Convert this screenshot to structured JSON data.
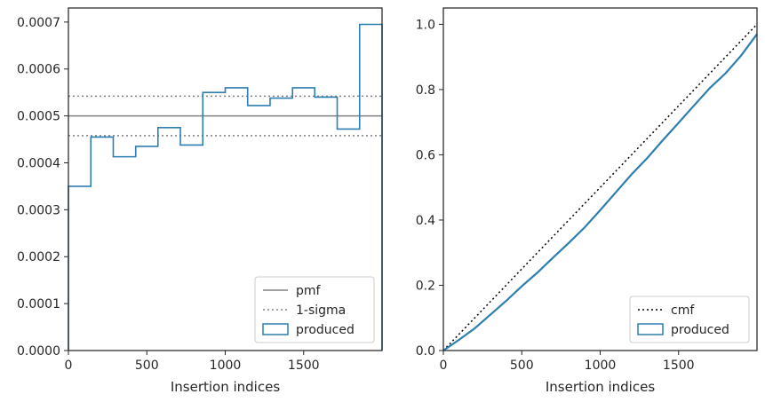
{
  "chart_data": [
    {
      "type": "line",
      "subtype": "step-histogram",
      "xlabel": "Insertion indices",
      "ylabel": "",
      "xlim": [
        0,
        2000
      ],
      "ylim": [
        0,
        0.00073
      ],
      "xticks": [
        0,
        500,
        1000,
        1500
      ],
      "xtick_labels": [
        "0",
        "500",
        "1000",
        "1500"
      ],
      "yticks": [
        0,
        0.0001,
        0.0002,
        0.0003,
        0.0004,
        0.0005,
        0.0006,
        0.0007
      ],
      "ytick_labels": [
        "0.0000",
        "0.0001",
        "0.0002",
        "0.0003",
        "0.0004",
        "0.0005",
        "0.0006",
        "0.0007"
      ],
      "bin_edges": [
        0,
        143,
        286,
        429,
        571,
        714,
        857,
        1000,
        1143,
        1286,
        1429,
        1571,
        1714,
        1857,
        2000
      ],
      "series": [
        {
          "name": "produced",
          "values": [
            0.00035,
            0.000455,
            0.000413,
            0.000435,
            0.000475,
            0.000438,
            0.00055,
            0.00056,
            0.000522,
            0.000538,
            0.00056,
            0.00054,
            0.000472,
            0.000695
          ],
          "color": "#2e7eb0"
        }
      ],
      "hlines": [
        {
          "name": "pmf",
          "y": 0.0005,
          "style": "solid",
          "color": "#808080"
        },
        {
          "name": "1-sigma",
          "y": 0.000542,
          "style": "dotted",
          "color": "#808080"
        },
        {
          "name": "1-sigma",
          "y": 0.000458,
          "style": "dotted",
          "color": "#808080"
        }
      ],
      "legend": {
        "position": "lower right",
        "entries": [
          "pmf",
          "1-sigma",
          "produced"
        ]
      },
      "grid": false
    },
    {
      "type": "line",
      "xlabel": "Insertion indices",
      "ylabel": "",
      "xlim": [
        0,
        2000
      ],
      "ylim": [
        0,
        1.05
      ],
      "xticks": [
        0,
        500,
        1000,
        1500
      ],
      "xtick_labels": [
        "0",
        "500",
        "1000",
        "1500"
      ],
      "yticks": [
        0,
        0.2,
        0.4,
        0.6,
        0.8,
        1.0
      ],
      "ytick_labels": [
        "0.0",
        "0.2",
        "0.4",
        "0.6",
        "0.8",
        "1.0"
      ],
      "series": [
        {
          "name": "cmf",
          "x": [
            0,
            2000
          ],
          "y": [
            0,
            1.0
          ],
          "style": "dotted",
          "color": "#000000"
        },
        {
          "name": "produced",
          "x": [
            0,
            100,
            200,
            300,
            400,
            500,
            600,
            700,
            800,
            900,
            1000,
            1100,
            1200,
            1300,
            1400,
            1500,
            1600,
            1700,
            1800,
            1900,
            2000
          ],
          "y": [
            0,
            0.033,
            0.068,
            0.11,
            0.152,
            0.197,
            0.239,
            0.285,
            0.33,
            0.377,
            0.43,
            0.485,
            0.54,
            0.59,
            0.645,
            0.698,
            0.752,
            0.805,
            0.85,
            0.905,
            0.97
          ],
          "style": "solid",
          "color": "#2e7eb0"
        }
      ],
      "legend": {
        "position": "lower right",
        "entries": [
          "cmf",
          "produced"
        ]
      },
      "grid": false
    }
  ]
}
